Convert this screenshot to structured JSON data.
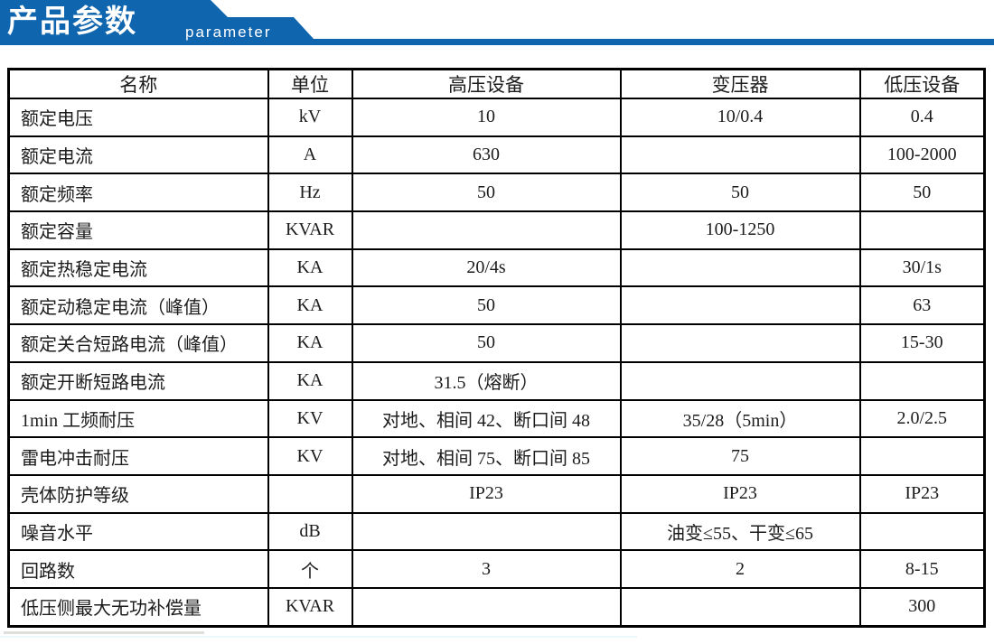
{
  "header": {
    "title": "产品参数",
    "subtitle": "parameter",
    "accent_color": "#1065af"
  },
  "table": {
    "columns": [
      "名称",
      "单位",
      "高压设备",
      "变压器",
      "低压设备"
    ],
    "rows": [
      [
        "额定电压",
        "kV",
        "10",
        "10/0.4",
        "0.4"
      ],
      [
        "额定电流",
        "A",
        "630",
        "",
        "100-2000"
      ],
      [
        "额定频率",
        "Hz",
        "50",
        "50",
        "50"
      ],
      [
        "额定容量",
        "KVAR",
        "",
        "100-1250",
        ""
      ],
      [
        "额定热稳定电流",
        "KA",
        "20/4s",
        "",
        "30/1s"
      ],
      [
        "额定动稳定电流（峰值）",
        "KA",
        "50",
        "",
        "63"
      ],
      [
        "额定关合短路电流（峰值）",
        "KA",
        "50",
        "",
        "15-30"
      ],
      [
        "额定开断短路电流",
        "KA",
        "31.5（熔断）",
        "",
        ""
      ],
      [
        "1min 工频耐压",
        "KV",
        "对地、相间 42、断口间 48",
        "35/28（5min）",
        "2.0/2.5"
      ],
      [
        "雷电冲击耐压",
        "KV",
        "对地、相间 75、断口间 85",
        "75",
        ""
      ],
      [
        "壳体防护等级",
        "",
        "IP23",
        "IP23",
        "IP23"
      ],
      [
        "噪音水平",
        "dB",
        "",
        "油变≤55、干变≤65",
        ""
      ],
      [
        "回路数",
        "个",
        "3",
        "2",
        "8-15"
      ],
      [
        "低压侧最大无功补偿量",
        "KVAR",
        "",
        "",
        "300"
      ]
    ]
  }
}
